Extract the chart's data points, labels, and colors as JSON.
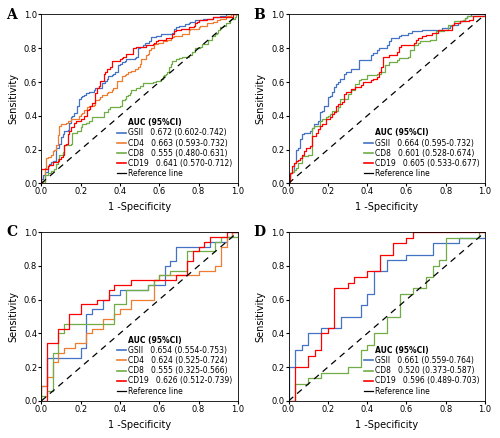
{
  "panels": [
    "A",
    "B",
    "C",
    "D"
  ],
  "panel_labels_fontsize": 10,
  "axis_label_fontsize": 7,
  "tick_fontsize": 6,
  "legend_fontsize": 5.5,
  "line_width": 0.9,
  "colors": {
    "GSII": "#4472C4",
    "CD4": "#ED7D31",
    "CD8": "#70AD47",
    "CD19": "#FF0000",
    "reference": "#000000"
  },
  "subplots": [
    {
      "label": "A",
      "lines": [
        "GSII",
        "CD4",
        "CD8",
        "CD19"
      ],
      "legend_entries": [
        [
          "GSII",
          "0.672 (0.602-0.742)"
        ],
        [
          "CD4",
          "0.663 (0.593-0.732)"
        ],
        [
          "CD8",
          "0.555 (0.480-0.631)"
        ],
        [
          "CD19",
          "0.641 (0.570-0.712)"
        ]
      ],
      "aucs": [
        0.672,
        0.663,
        0.555,
        0.641
      ],
      "seeds": [
        1,
        2,
        3,
        4
      ],
      "n_points": 120
    },
    {
      "label": "B",
      "lines": [
        "GSII",
        "CD8",
        "CD19"
      ],
      "legend_entries": [
        [
          "GSII",
          "0.664 (0.595-0.732)"
        ],
        [
          "CD8",
          "0.601 (0.528-0.674)"
        ],
        [
          "CD19",
          "0.605 (0.533-0.677)"
        ]
      ],
      "aucs": [
        0.664,
        0.601,
        0.605
      ],
      "seeds": [
        10,
        11,
        12
      ],
      "n_points": 100
    },
    {
      "label": "C",
      "lines": [
        "GSII",
        "CD4",
        "CD8",
        "CD19"
      ],
      "legend_entries": [
        [
          "GSII",
          "0.654 (0.554-0.753)"
        ],
        [
          "CD4",
          "0.624 (0.525-0.724)"
        ],
        [
          "CD8",
          "0.555 (0.325-0.566)"
        ],
        [
          "CD19",
          "0.626 (0.512-0.739)"
        ]
      ],
      "aucs": [
        0.654,
        0.624,
        0.555,
        0.626
      ],
      "seeds": [
        20,
        21,
        22,
        23
      ],
      "n_points": 35
    },
    {
      "label": "D",
      "lines": [
        "GSII",
        "CD8",
        "CD19"
      ],
      "legend_entries": [
        [
          "GSII",
          "0.661 (0.559-0.764)"
        ],
        [
          "CD8",
          "0.520 (0.373-0.587)"
        ],
        [
          "CD19",
          "0.596 (0.489-0.703)"
        ]
      ],
      "aucs": [
        0.661,
        0.52,
        0.596
      ],
      "seeds": [
        30,
        31,
        32
      ],
      "n_points": 30
    }
  ]
}
